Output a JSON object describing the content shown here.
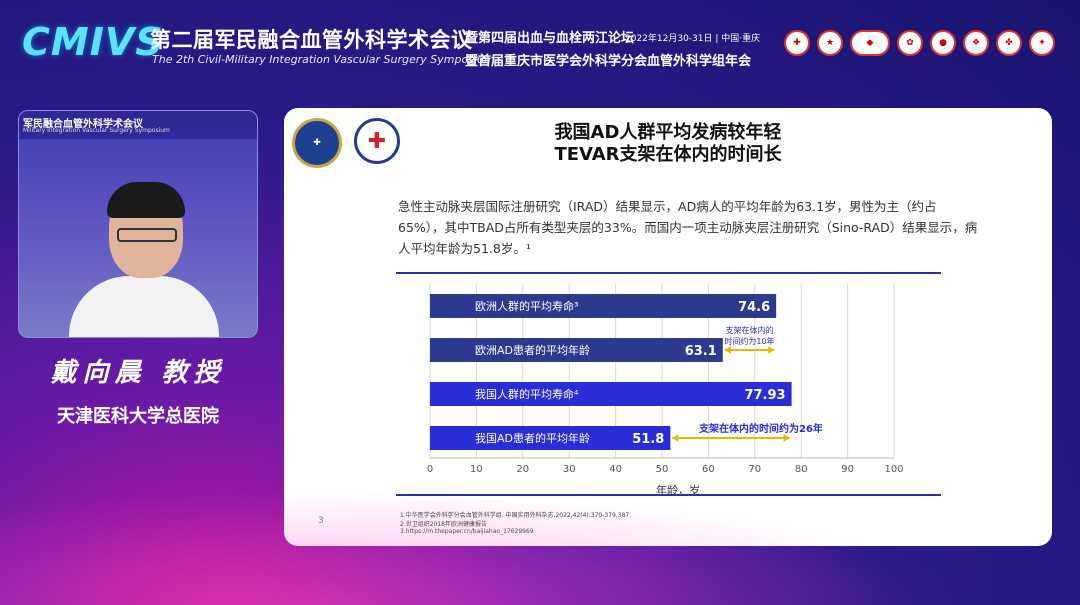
{
  "header": {
    "logo": "CMIVS",
    "title_cn": "第二届军民融合血管外科学术会议",
    "title_en": "The 2th Civil-Military Integration Vascular Surgery Symposium",
    "sub1": "暨第四届出血与血栓两江论坛",
    "date": "2022年12月30-31日 | 中国·重庆",
    "sub2": "暨首届重庆市医学会外科学分会血管外科学组年会"
  },
  "video": {
    "title": "军民融合血管外科学术会议",
    "title2": "Military Integration Vascular Surgery Symposium"
  },
  "speaker": {
    "name": "戴向晨 教授",
    "org": "天津医科大学总医院"
  },
  "slide": {
    "title1": "我国AD人群平均发病较年轻",
    "title2": "TEVAR支架在体内的时间长",
    "body": "急性主动脉夹层国际注册研究（IRAD）结果显示，AD病人的平均年龄为63.1岁，男性为主（约占65%），其中TBAD占所有类型夹层的33%。而国内一项主动脉夹层注册研究（Sino-RAD）结果显示，病人平均年龄为51.8岁。¹",
    "footnotes": [
      "1.中华医学会外科学分会血管外科学组. 中国实用外科杂志,2022,42(4):370-379,387.",
      "2.世卫组织2018年欧洲健康报告",
      "3.https://m.thepaper.cn/baijiahao_17629969"
    ],
    "page": "3"
  },
  "chart_data": {
    "type": "bar",
    "orientation": "horizontal",
    "categories": [
      "欧洲人群的平均寿命³",
      "欧洲AD患者的平均年龄",
      "我国人群的平均寿命⁴",
      "我国AD患者的平均年龄"
    ],
    "values": [
      74.6,
      63.1,
      77.93,
      51.8
    ],
    "value_labels": [
      "74.6",
      "63.1",
      "77.93",
      "51.8"
    ],
    "colors": [
      "#2b3a8f",
      "#2b3a8f",
      "#2a2cd8",
      "#2a2cd8"
    ],
    "xlabel": "年龄，岁",
    "xlim": [
      0,
      100
    ],
    "xticks": [
      0,
      10,
      20,
      30,
      40,
      50,
      60,
      70,
      80,
      90,
      100
    ],
    "grid": true,
    "annotations": [
      {
        "text_lines": [
          "支架在体内的",
          "时间约为10年"
        ],
        "from": 63.1,
        "to": 74.6,
        "row": 1
      },
      {
        "text_lines": [
          "支架在体内的时间约为26年"
        ],
        "from": 51.8,
        "to": 77.93,
        "row": 3
      }
    ]
  }
}
